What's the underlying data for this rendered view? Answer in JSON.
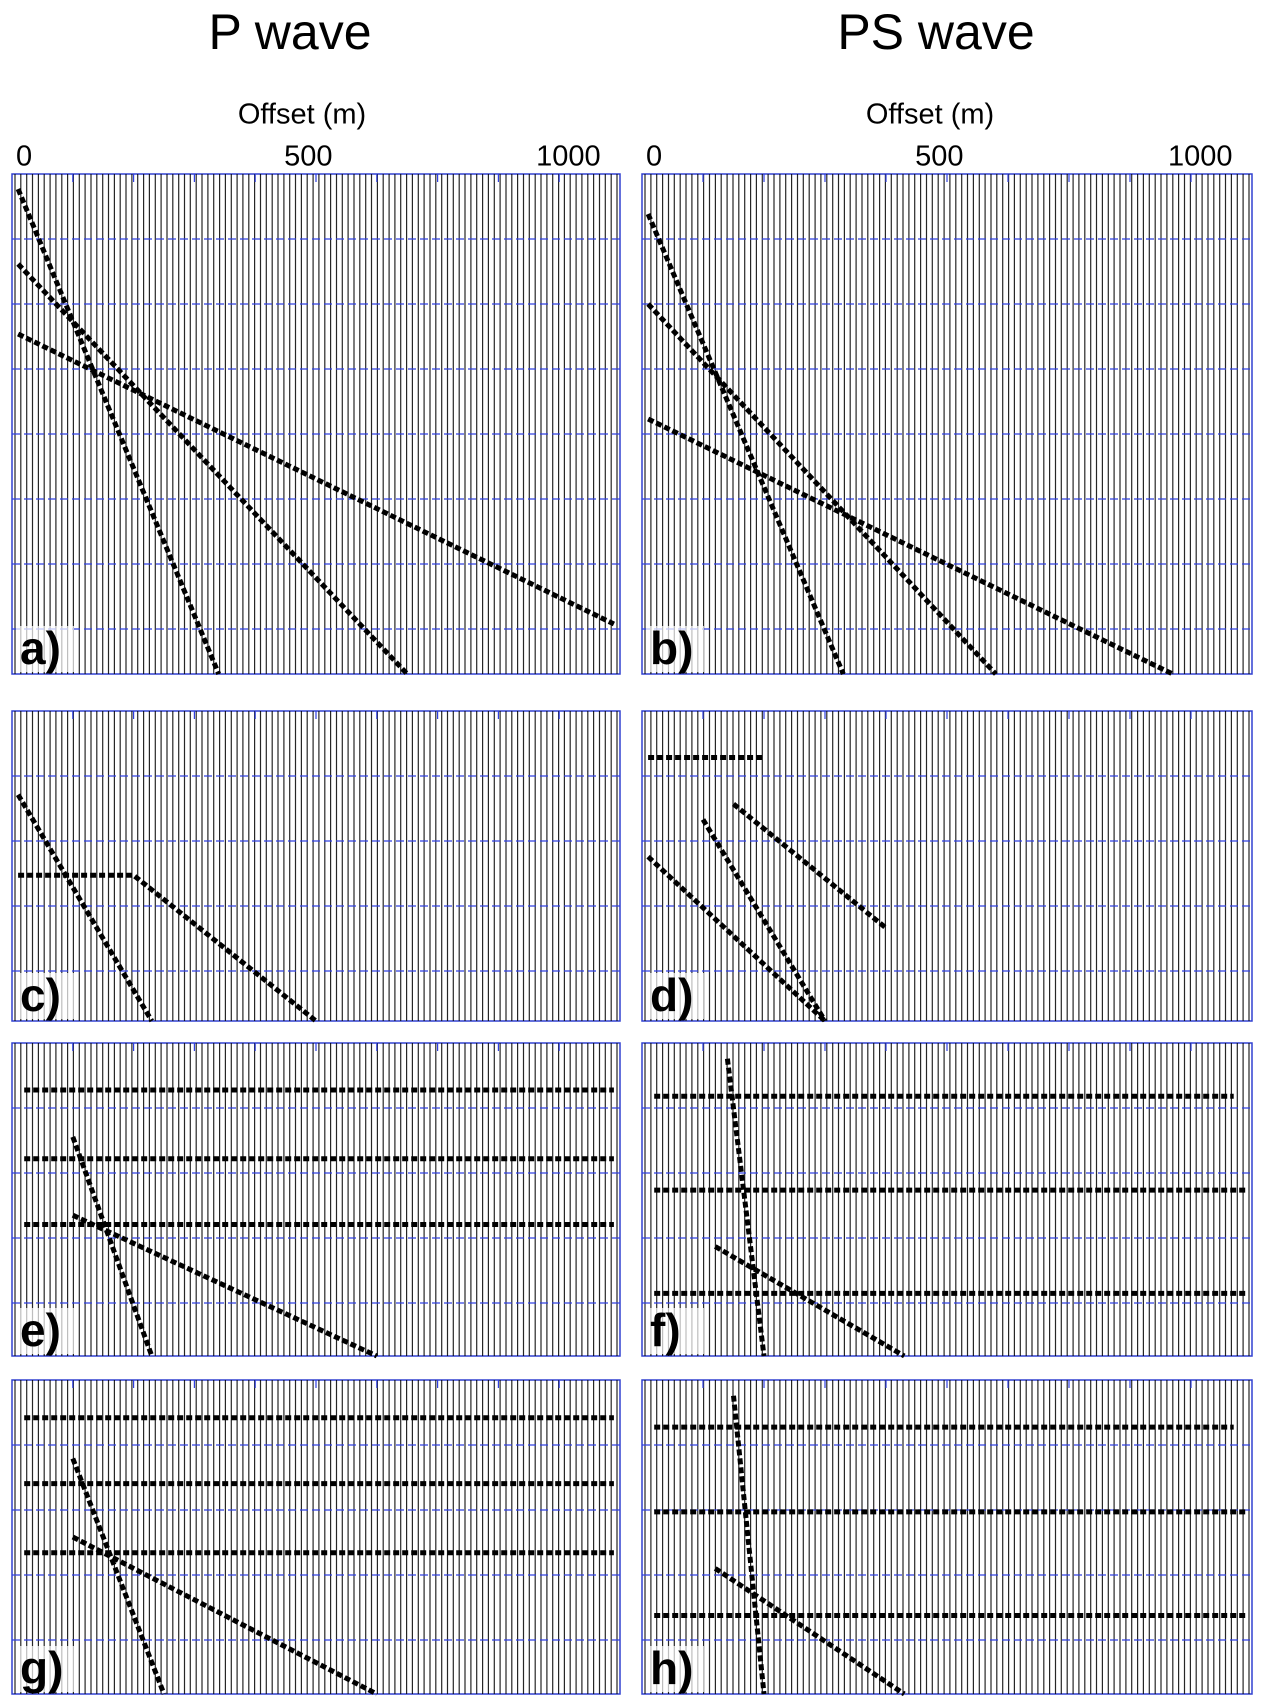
{
  "columns": [
    {
      "title": "P wave",
      "axis_label": "Offset (m)",
      "ticks": [
        "0",
        "500",
        "1000"
      ]
    },
    {
      "title": "PS wave",
      "axis_label": "Offset (m)",
      "ticks": [
        "0",
        "500",
        "1000"
      ]
    }
  ],
  "panels": [
    "a)",
    "b)",
    "c)",
    "d)",
    "e)",
    "f)",
    "g)",
    "h)"
  ]
}
